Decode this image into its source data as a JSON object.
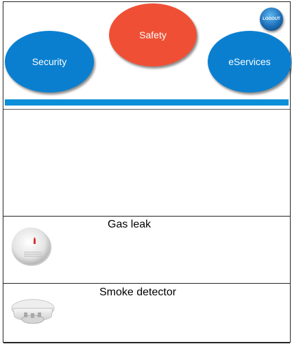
{
  "nav": {
    "security_label": "Security",
    "safety_label": "Safety",
    "eservices_label": "eServices",
    "logout_label": "LOGOUT",
    "colors": {
      "security": "#0a7fd0",
      "safety": "#ef5035",
      "eservices": "#0a7fd0",
      "bar": "#0a8fd8"
    }
  },
  "devices": [
    {
      "title": "Gas leak",
      "icon": "gas-detector-icon"
    },
    {
      "title": "Smoke detector",
      "icon": "smoke-detector-icon"
    }
  ]
}
